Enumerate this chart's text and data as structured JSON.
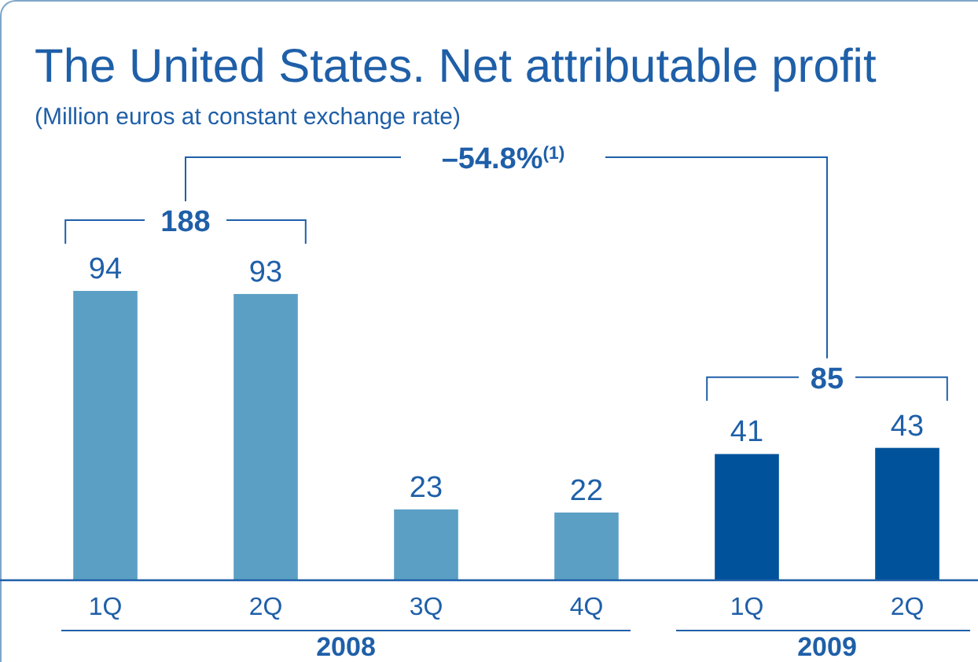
{
  "chart_data": {
    "type": "bar",
    "title": "The United States. Net attributable profit",
    "subtitle": "(Million euros at constant exchange rate)",
    "categories": [
      "1Q",
      "2Q",
      "3Q",
      "4Q",
      "1Q",
      "2Q"
    ],
    "values": [
      94,
      93,
      23,
      22,
      41,
      43
    ],
    "colors": [
      "#5b9fc4",
      "#5b9fc4",
      "#5b9fc4",
      "#5b9fc4",
      "#00529b",
      "#00529b"
    ],
    "data_labels": true,
    "annotations": [
      "188",
      "85",
      "–54.8%$^{(1)}$",
      "2008",
      "2009"
    ]
  }
}
